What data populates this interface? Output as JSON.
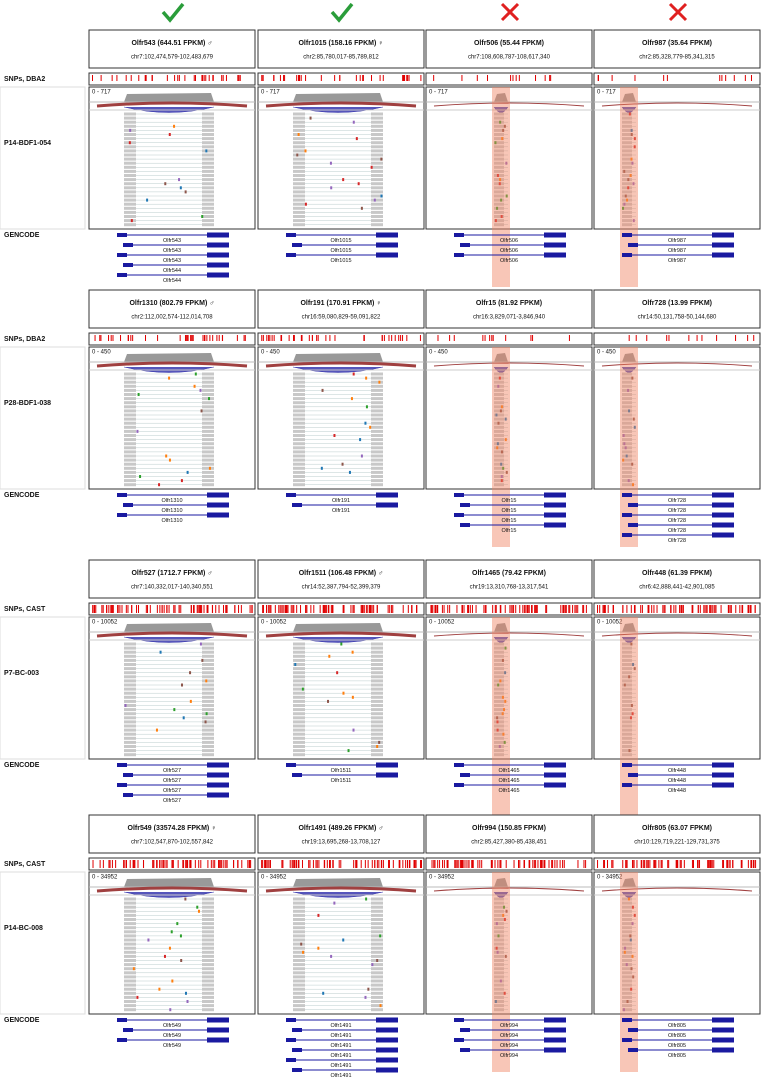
{
  "blocks": [
    {
      "snp_label": "SNPs, DBA2",
      "sample": "P14-BDF1-054",
      "range": "0 - 717",
      "gencode": "GENCODE",
      "columns": [
        {
          "title": "Olfr543 (644.51 FPKM) ♂",
          "coords": "chr7:102,474,579-102,483,679",
          "genes": [
            "Olfr543",
            "Olfr543",
            "Olfr543",
            "Olfr544",
            "Olfr544"
          ]
        },
        {
          "title": "Olfr1015 (158.16 FPKM) ♀",
          "coords": "chr2:85,780,017-85,789,812",
          "genes": [
            "Olfr1015",
            "Olfr1015",
            "Olfr1015"
          ]
        },
        {
          "title": "Olfr506 (55.44 FPKM)",
          "coords": "chr7:108,608,787-108,617,340",
          "genes": [
            "Olfr506",
            "Olfr506",
            "Olfr506"
          ]
        },
        {
          "title": "Olfr987 (35.64 FPKM)",
          "coords": "chr2:85,328,779-85,341,315",
          "genes": [
            "Olfr987",
            "Olfr987",
            "Olfr987"
          ]
        }
      ]
    },
    {
      "snp_label": "SNPs, DBA2",
      "sample": "P28-BDF1-038",
      "range": "0 - 450",
      "gencode": "GENCODE",
      "columns": [
        {
          "title": "Olfr1310 (802.79 FPKM) ♂",
          "coords": "chr2:112,002,574-112,014,708",
          "genes": [
            "Olfr1310",
            "Olfr1310",
            "Olfr1310"
          ]
        },
        {
          "title": "Olfr191 (170.91 FPKM) ♀",
          "coords": "chr16:59,080,829-59,091,822",
          "genes": [
            "Olfr191",
            "Olfr191"
          ]
        },
        {
          "title": "Olfr15 (81.92 FPKM)",
          "coords": "chr16:3,829,071-3,846,940",
          "genes": [
            "Olfr15",
            "Olfr15",
            "Olfr15",
            "Olfr15"
          ]
        },
        {
          "title": "Olfr728 (13.99 FPKM)",
          "coords": "chr14:50,131,758-50,144,680",
          "genes": [
            "Olfr728",
            "Olfr728",
            "Olfr728",
            "Olfr728",
            "Olfr728"
          ]
        }
      ]
    },
    {
      "snp_label": "SNPs, CAST",
      "sample": "P7-BC-003",
      "range": "0 - 10052",
      "gencode": "GENCODE",
      "columns": [
        {
          "title": "Olfr527 (1712.7 FPKM) ♂",
          "coords": "chr7:140,332,017-140,340,551",
          "genes": [
            "Olfr527",
            "Olfr527",
            "Olfr527",
            "Olfr527"
          ]
        },
        {
          "title": "Olfr1511 (106.48 FPKM) ♂",
          "coords": "chr14:52,387,794-52,399,379",
          "genes": [
            "Olfr1511",
            "Olfr1511"
          ]
        },
        {
          "title": "Olfr1465 (79.42 FPKM)",
          "coords": "chr19:13,310,768-13,317,541",
          "genes": [
            "Olfr1465",
            "Olfr1465",
            "Olfr1465"
          ]
        },
        {
          "title": "Olfr448 (61.39 FPKM)",
          "coords": "chr6:42,888,441-42,901,085",
          "genes": [
            "Olfr448",
            "Olfr448",
            "Olfr448"
          ]
        }
      ]
    },
    {
      "snp_label": "SNPs, CAST",
      "sample": "P14-BC-008",
      "range": "0 - 34952",
      "gencode": "GENCODE",
      "columns": [
        {
          "title": "Olfr549 (33574.28 FPKM) ♀",
          "coords": "chr7:102,547,870-102,557,842",
          "genes": [
            "Olfr549",
            "Olfr549",
            "Olfr549"
          ]
        },
        {
          "title": "Olfr1491 (489.26 FPKM) ♂",
          "coords": "chr19:13,695,268-13,708,127",
          "genes": [
            "Olfr1491",
            "Olfr1491",
            "Olfr1491",
            "Olfr1491",
            "Olfr1491",
            "Olfr1491"
          ]
        },
        {
          "title": "Olfr994 (150.85 FPKM)",
          "coords": "chr2:85,427,380-85,438,451",
          "genes": [
            "Olfr994",
            "Olfr994",
            "Olfr994",
            "Olfr994"
          ]
        },
        {
          "title": "Olfr805 (63.07 FPKM)",
          "coords": "chr10:129,719,221-129,731,375",
          "genes": [
            "Olfr805",
            "Olfr805",
            "Olfr805",
            "Olfr805"
          ]
        }
      ]
    }
  ]
}
